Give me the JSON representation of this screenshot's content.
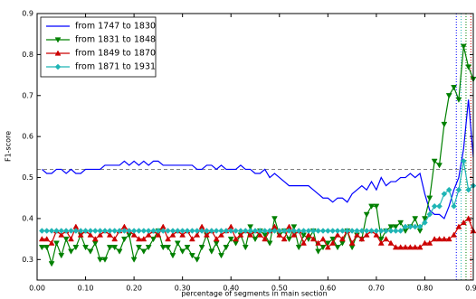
{
  "chart_data": {
    "type": "line",
    "xlabel": "percentage of segments in main section",
    "ylabel": "F1-score",
    "x": [
      0.01,
      0.02,
      0.03,
      0.04,
      0.05,
      0.06,
      0.07,
      0.08,
      0.09,
      0.1,
      0.11,
      0.12,
      0.13,
      0.14,
      0.15,
      0.16,
      0.17,
      0.18,
      0.19,
      0.2,
      0.21,
      0.22,
      0.23,
      0.24,
      0.25,
      0.26,
      0.27,
      0.28,
      0.29,
      0.3,
      0.31,
      0.32,
      0.33,
      0.34,
      0.35,
      0.36,
      0.37,
      0.38,
      0.39,
      0.4,
      0.41,
      0.42,
      0.43,
      0.44,
      0.45,
      0.46,
      0.47,
      0.48,
      0.49,
      0.5,
      0.51,
      0.52,
      0.53,
      0.54,
      0.55,
      0.56,
      0.57,
      0.58,
      0.59,
      0.6,
      0.61,
      0.62,
      0.63,
      0.64,
      0.65,
      0.66,
      0.67,
      0.68,
      0.69,
      0.7,
      0.71,
      0.72,
      0.73,
      0.74,
      0.75,
      0.76,
      0.77,
      0.78,
      0.79,
      0.8,
      0.81,
      0.82,
      0.83,
      0.84,
      0.85,
      0.86,
      0.87,
      0.88,
      0.89,
      0.9
    ],
    "series": [
      {
        "name": "from 1747 to 1830",
        "color": "#0000ff",
        "marker": "none",
        "values": [
          0.52,
          0.51,
          0.51,
          0.52,
          0.52,
          0.51,
          0.52,
          0.51,
          0.51,
          0.52,
          0.52,
          0.52,
          0.52,
          0.53,
          0.53,
          0.53,
          0.53,
          0.54,
          0.53,
          0.54,
          0.53,
          0.54,
          0.53,
          0.54,
          0.54,
          0.53,
          0.53,
          0.53,
          0.53,
          0.53,
          0.53,
          0.53,
          0.52,
          0.52,
          0.53,
          0.53,
          0.52,
          0.53,
          0.52,
          0.52,
          0.52,
          0.53,
          0.52,
          0.52,
          0.51,
          0.51,
          0.52,
          0.5,
          0.51,
          0.5,
          0.49,
          0.48,
          0.48,
          0.48,
          0.48,
          0.48,
          0.47,
          0.46,
          0.45,
          0.45,
          0.44,
          0.45,
          0.45,
          0.44,
          0.46,
          0.47,
          0.48,
          0.47,
          0.49,
          0.47,
          0.5,
          0.48,
          0.49,
          0.49,
          0.5,
          0.5,
          0.51,
          0.5,
          0.51,
          0.46,
          0.42,
          0.41,
          0.41,
          0.4,
          0.43,
          0.47,
          0.5,
          0.57,
          0.69,
          0.55
        ]
      },
      {
        "name": "from 1831 to 1848",
        "color": "#008000",
        "marker": "triangle-down",
        "values": [
          0.33,
          0.33,
          0.29,
          0.34,
          0.31,
          0.35,
          0.32,
          0.33,
          0.36,
          0.33,
          0.32,
          0.34,
          0.3,
          0.3,
          0.33,
          0.33,
          0.32,
          0.35,
          0.36,
          0.3,
          0.33,
          0.32,
          0.33,
          0.35,
          0.37,
          0.33,
          0.33,
          0.31,
          0.34,
          0.32,
          0.33,
          0.31,
          0.3,
          0.33,
          0.36,
          0.32,
          0.34,
          0.31,
          0.33,
          0.35,
          0.34,
          0.36,
          0.33,
          0.38,
          0.35,
          0.37,
          0.36,
          0.34,
          0.4,
          0.36,
          0.37,
          0.35,
          0.38,
          0.33,
          0.36,
          0.35,
          0.37,
          0.32,
          0.33,
          0.34,
          0.35,
          0.33,
          0.34,
          0.37,
          0.33,
          0.36,
          0.35,
          0.41,
          0.43,
          0.43,
          0.35,
          0.37,
          0.38,
          0.38,
          0.39,
          0.37,
          0.38,
          0.4,
          0.37,
          0.4,
          0.45,
          0.54,
          0.53,
          0.63,
          0.7,
          0.72,
          0.69,
          0.82,
          0.77,
          0.74
        ]
      },
      {
        "name": "from 1849 to 1870",
        "color": "#cc0000",
        "marker": "triangle-up",
        "values": [
          0.35,
          0.35,
          0.34,
          0.37,
          0.36,
          0.37,
          0.35,
          0.38,
          0.36,
          0.37,
          0.36,
          0.35,
          0.36,
          0.37,
          0.36,
          0.35,
          0.37,
          0.38,
          0.37,
          0.36,
          0.35,
          0.35,
          0.36,
          0.37,
          0.36,
          0.38,
          0.35,
          0.36,
          0.37,
          0.36,
          0.37,
          0.35,
          0.36,
          0.38,
          0.36,
          0.37,
          0.35,
          0.36,
          0.37,
          0.38,
          0.35,
          0.36,
          0.37,
          0.36,
          0.37,
          0.36,
          0.35,
          0.37,
          0.38,
          0.36,
          0.35,
          0.38,
          0.36,
          0.37,
          0.34,
          0.36,
          0.35,
          0.34,
          0.35,
          0.33,
          0.34,
          0.36,
          0.35,
          0.37,
          0.34,
          0.36,
          0.35,
          0.36,
          0.37,
          0.36,
          0.34,
          0.35,
          0.34,
          0.33,
          0.33,
          0.33,
          0.33,
          0.33,
          0.33,
          0.34,
          0.34,
          0.35,
          0.35,
          0.35,
          0.35,
          0.36,
          0.38,
          0.39,
          0.4,
          0.37
        ]
      },
      {
        "name": "from 1871 to 1931",
        "color": "#1fb5b5",
        "marker": "diamond",
        "values": [
          0.37,
          0.37,
          0.37,
          0.37,
          0.37,
          0.37,
          0.37,
          0.37,
          0.37,
          0.37,
          0.37,
          0.37,
          0.37,
          0.37,
          0.37,
          0.37,
          0.37,
          0.37,
          0.37,
          0.37,
          0.37,
          0.37,
          0.37,
          0.37,
          0.37,
          0.37,
          0.37,
          0.37,
          0.37,
          0.37,
          0.37,
          0.37,
          0.37,
          0.37,
          0.37,
          0.37,
          0.37,
          0.37,
          0.37,
          0.37,
          0.37,
          0.37,
          0.37,
          0.37,
          0.37,
          0.37,
          0.37,
          0.37,
          0.37,
          0.37,
          0.37,
          0.37,
          0.37,
          0.37,
          0.37,
          0.37,
          0.37,
          0.37,
          0.37,
          0.37,
          0.37,
          0.37,
          0.37,
          0.37,
          0.37,
          0.37,
          0.37,
          0.37,
          0.37,
          0.37,
          0.37,
          0.37,
          0.37,
          0.37,
          0.37,
          0.38,
          0.38,
          0.38,
          0.38,
          0.39,
          0.41,
          0.43,
          0.43,
          0.46,
          0.47,
          0.43,
          0.47,
          0.54,
          0.47,
          0.48
        ]
      }
    ],
    "hlines": [
      {
        "value": 0.52,
        "color": "#808080"
      }
    ],
    "vlines": [
      {
        "value": 0.865,
        "color": "#0000ff"
      },
      {
        "value": 0.875,
        "color": "#1fb5b5"
      },
      {
        "value": 0.885,
        "color": "#008000"
      },
      {
        "value": 0.895,
        "color": "#cc0000"
      }
    ],
    "xlim": [
      0,
      0.9
    ],
    "ylim": [
      0.25,
      0.9
    ],
    "xticks": [
      {
        "value": 0,
        "label": "0.00"
      },
      {
        "value": 0.1,
        "label": "0.10"
      },
      {
        "value": 0.2,
        "label": "0.20"
      },
      {
        "value": 0.3,
        "label": "0.30"
      },
      {
        "value": 0.4,
        "label": "0.40"
      },
      {
        "value": 0.5,
        "label": "0.50"
      },
      {
        "value": 0.6,
        "label": "0.60"
      },
      {
        "value": 0.7,
        "label": "0.70"
      },
      {
        "value": 0.8,
        "label": "0.80"
      },
      {
        "value": 0.9,
        "label": "0.90"
      }
    ],
    "yticks": [
      0.3,
      0.4,
      0.5,
      0.6,
      0.7,
      0.8,
      0.9
    ],
    "legend": "upper left",
    "grid": false
  }
}
